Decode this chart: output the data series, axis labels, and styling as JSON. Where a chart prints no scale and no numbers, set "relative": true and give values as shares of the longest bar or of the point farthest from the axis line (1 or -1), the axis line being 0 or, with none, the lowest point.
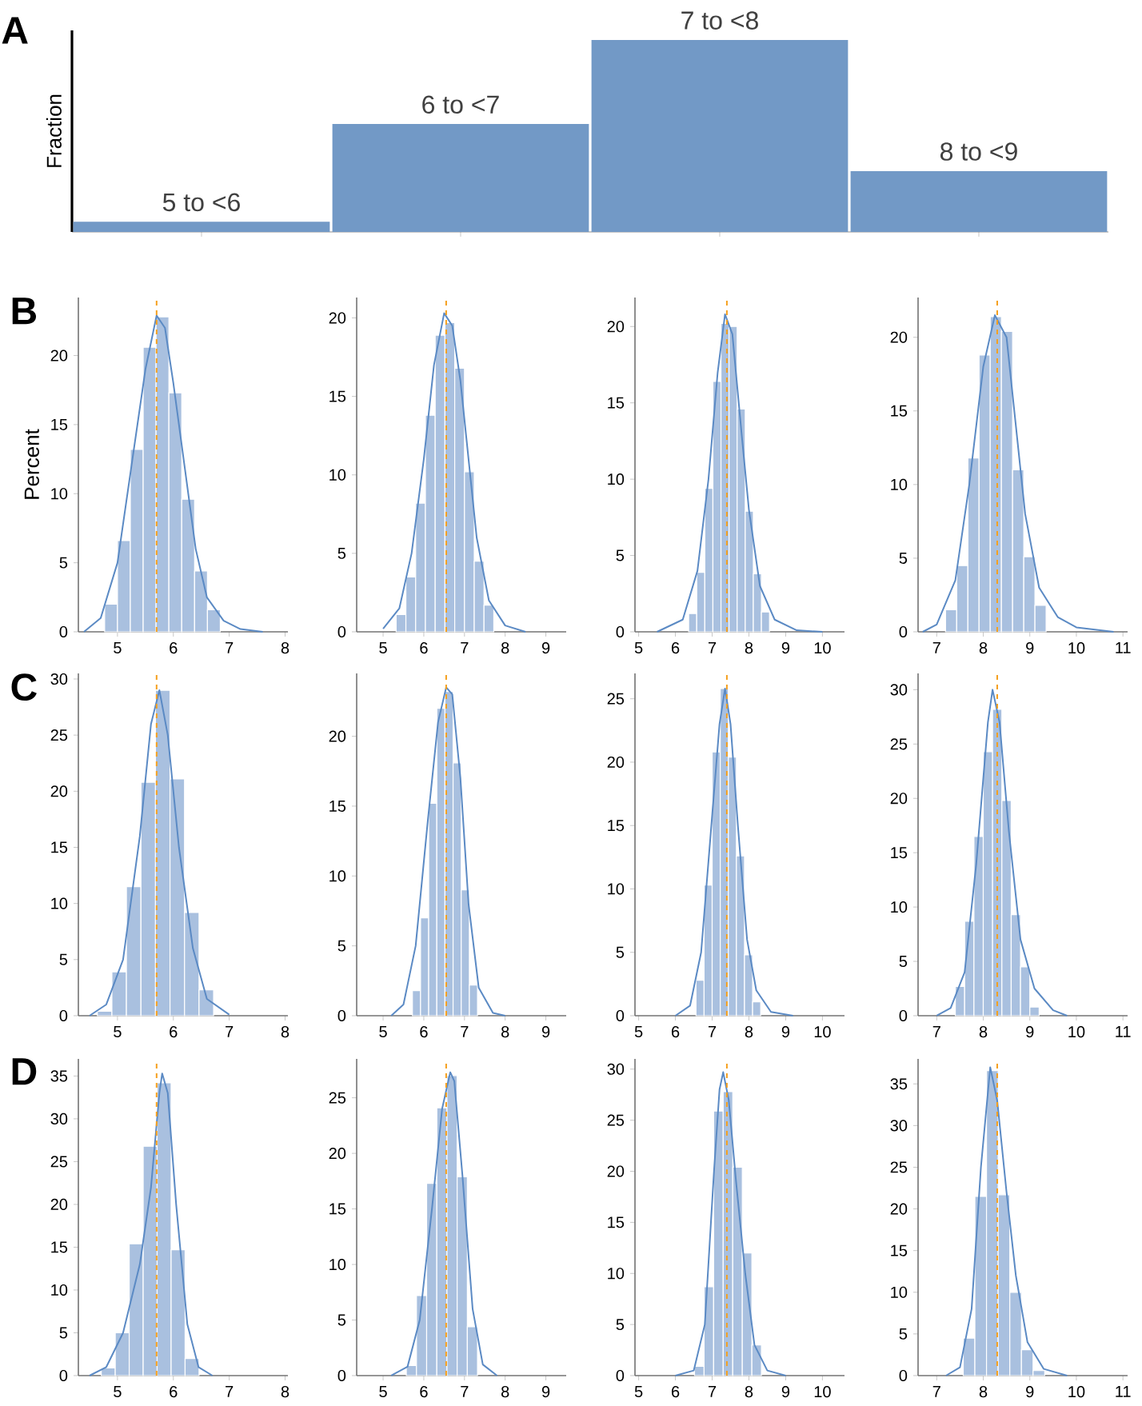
{
  "chart_data": [
    {
      "type": "bar",
      "relative": true,
      "categories": [
        "5 to <6",
        "6 to <7",
        "7 to <8",
        "8 to <9"
      ],
      "values": [
        0.053,
        0.562,
        1,
        0.317
      ],
      "color": "#7299c6",
      "ylabel": "Fraction",
      "annotations": [
        "A"
      ]
    },
    {
      "type": "histogram",
      "ylabel": "Percent",
      "annotations": [
        "B"
      ],
      "xlim": [
        4.3,
        8.05
      ],
      "xticks": [
        5,
        6,
        7,
        8
      ],
      "ylim": [
        0,
        24.2
      ],
      "yticks": [
        0,
        5,
        10,
        15,
        20
      ],
      "series": [
        {
          "type": "histogram",
          "color": "#a9c0df",
          "bins": [
            4.77,
            5.0,
            5.23,
            5.46,
            5.69,
            5.92,
            6.15,
            6.38,
            6.61,
            6.84
          ],
          "values": [
            2.0,
            6.6,
            13.2,
            20.6,
            22.8,
            17.3,
            9.6,
            4.4,
            1.6
          ]
        },
        {
          "type": "line",
          "color": "#5b8ac4",
          "x": [
            4.4,
            4.7,
            5.0,
            5.25,
            5.5,
            5.7,
            5.85,
            6.0,
            6.2,
            6.4,
            6.6,
            6.9,
            7.2,
            7.6
          ],
          "values": [
            0,
            1,
            5,
            12,
            19,
            22.9,
            22,
            18,
            12,
            6,
            2.5,
            0.8,
            0.2,
            0
          ]
        }
      ],
      "ref_lines": [
        {
          "axis": "x",
          "value": 5.7,
          "color": "#f5a01e",
          "line_style": "dashed"
        }
      ]
    },
    {
      "type": "histogram",
      "xlim": [
        4.35,
        9.5
      ],
      "xticks": [
        5,
        6,
        7,
        8,
        9
      ],
      "ylim": [
        0,
        21.3
      ],
      "yticks": [
        0,
        5,
        10,
        15,
        20
      ],
      "series": [
        {
          "type": "histogram",
          "color": "#a9c0df",
          "bins": [
            5.32,
            5.56,
            5.8,
            6.04,
            6.28,
            6.52,
            6.76,
            7.0,
            7.24,
            7.48,
            7.72
          ],
          "values": [
            1.1,
            3.5,
            8.2,
            13.8,
            18.9,
            19.7,
            16.8,
            10.2,
            4.5,
            1.7
          ]
        },
        {
          "type": "line",
          "color": "#5b8ac4",
          "x": [
            5.0,
            5.4,
            5.7,
            6.0,
            6.25,
            6.5,
            6.7,
            6.9,
            7.1,
            7.3,
            7.6,
            8.0,
            8.5
          ],
          "values": [
            0.2,
            1.5,
            5,
            11,
            17,
            20.3,
            19.5,
            16,
            11,
            6,
            2,
            0.4,
            0
          ]
        }
      ],
      "ref_lines": [
        {
          "axis": "x",
          "value": 6.55,
          "color": "#f5a01e",
          "line_style": "dashed"
        }
      ]
    },
    {
      "type": "histogram",
      "xlim": [
        4.9,
        10.6
      ],
      "xticks": [
        5,
        6,
        7,
        8,
        9,
        10
      ],
      "ylim": [
        0,
        21.9
      ],
      "yticks": [
        0,
        5,
        10,
        15,
        20
      ],
      "series": [
        {
          "type": "histogram",
          "color": "#a9c0df",
          "bins": [
            6.36,
            6.58,
            6.8,
            7.02,
            7.24,
            7.46,
            7.68,
            7.9,
            8.12,
            8.34,
            8.56
          ],
          "values": [
            1.2,
            3.9,
            9.4,
            16.4,
            20.2,
            20.0,
            14.6,
            7.9,
            3.8,
            1.3
          ]
        },
        {
          "type": "line",
          "color": "#5b8ac4",
          "x": [
            5.5,
            6.2,
            6.6,
            6.9,
            7.15,
            7.35,
            7.55,
            7.8,
            8.0,
            8.3,
            8.7,
            9.3,
            10.0
          ],
          "values": [
            0,
            0.8,
            4,
            10,
            17,
            20.8,
            19.5,
            13,
            8,
            3,
            0.8,
            0.1,
            0
          ]
        }
      ],
      "ref_lines": [
        {
          "axis": "x",
          "value": 7.4,
          "color": "#f5a01e",
          "line_style": "dashed"
        }
      ]
    },
    {
      "type": "histogram",
      "xlim": [
        6.6,
        11.1
      ],
      "xticks": [
        7,
        8,
        9,
        10,
        11
      ],
      "ylim": [
        0,
        22.7
      ],
      "yticks": [
        0,
        5,
        10,
        15,
        20
      ],
      "series": [
        {
          "type": "histogram",
          "color": "#a9c0df",
          "bins": [
            7.19,
            7.43,
            7.67,
            7.91,
            8.15,
            8.39,
            8.63,
            8.87,
            9.11,
            9.35
          ],
          "values": [
            1.5,
            4.5,
            11.8,
            18.8,
            21.4,
            20.4,
            11.0,
            5.1,
            1.8
          ]
        },
        {
          "type": "line",
          "color": "#5b8ac4",
          "x": [
            6.7,
            7.0,
            7.4,
            7.7,
            8.0,
            8.25,
            8.5,
            8.7,
            8.9,
            9.2,
            9.6,
            10.0,
            10.8
          ],
          "values": [
            0,
            0.5,
            3.5,
            10,
            18,
            21.5,
            20,
            14,
            8,
            3,
            1,
            0.3,
            0
          ]
        }
      ],
      "ref_lines": [
        {
          "axis": "x",
          "value": 8.3,
          "color": "#f5a01e",
          "line_style": "dashed"
        }
      ]
    },
    {
      "type": "histogram",
      "annotations": [
        "C"
      ],
      "xlim": [
        4.3,
        8.05
      ],
      "xticks": [
        5,
        6,
        7,
        8
      ],
      "ylim": [
        0,
        30.5
      ],
      "yticks": [
        0,
        5,
        10,
        15,
        20,
        25,
        30
      ],
      "series": [
        {
          "type": "histogram",
          "color": "#a9c0df",
          "bins": [
            4.64,
            4.9,
            5.16,
            5.42,
            5.68,
            5.94,
            6.2,
            6.46,
            6.72
          ],
          "values": [
            0.4,
            3.9,
            11.5,
            20.8,
            29.0,
            21.1,
            9.2,
            2.3
          ]
        },
        {
          "type": "line",
          "color": "#5b8ac4",
          "x": [
            4.5,
            4.8,
            5.1,
            5.4,
            5.6,
            5.75,
            5.9,
            6.1,
            6.35,
            6.6,
            7.0
          ],
          "values": [
            0,
            1,
            5,
            16,
            26,
            29,
            25,
            15,
            6,
            1.5,
            0.1
          ]
        }
      ],
      "ref_lines": [
        {
          "axis": "x",
          "value": 5.7,
          "color": "#f5a01e",
          "line_style": "dashed"
        }
      ]
    },
    {
      "type": "histogram",
      "xlim": [
        4.35,
        9.5
      ],
      "xticks": [
        5,
        6,
        7,
        8,
        9
      ],
      "ylim": [
        0,
        24.5
      ],
      "yticks": [
        0,
        5,
        10,
        15,
        20
      ],
      "series": [
        {
          "type": "histogram",
          "color": "#a9c0df",
          "bins": [
            5.72,
            5.92,
            6.12,
            6.32,
            6.52,
            6.72,
            6.92,
            7.12,
            7.32
          ],
          "values": [
            1.8,
            7.0,
            15.2,
            22.0,
            23.2,
            18.1,
            9.0,
            2.2
          ]
        },
        {
          "type": "line",
          "color": "#5b8ac4",
          "x": [
            5.2,
            5.5,
            5.8,
            6.1,
            6.35,
            6.55,
            6.7,
            6.9,
            7.1,
            7.35,
            7.7,
            8.0
          ],
          "values": [
            0,
            0.8,
            5,
            14,
            21,
            23.5,
            23,
            17,
            8,
            2,
            0.2,
            0
          ]
        }
      ],
      "ref_lines": [
        {
          "axis": "x",
          "value": 6.55,
          "color": "#f5a01e",
          "line_style": "dashed"
        }
      ]
    },
    {
      "type": "histogram",
      "xlim": [
        4.9,
        10.6
      ],
      "xticks": [
        5,
        6,
        7,
        8,
        9,
        10
      ],
      "ylim": [
        0,
        27
      ],
      "yticks": [
        0,
        5,
        10,
        15,
        20,
        25
      ],
      "series": [
        {
          "type": "histogram",
          "color": "#a9c0df",
          "bins": [
            6.56,
            6.78,
            7.0,
            7.22,
            7.44,
            7.66,
            7.88,
            8.1,
            8.32
          ],
          "values": [
            2.8,
            10.3,
            20.8,
            25.8,
            20.4,
            12.6,
            4.8,
            1.1
          ]
        },
        {
          "type": "line",
          "color": "#5b8ac4",
          "x": [
            6.0,
            6.4,
            6.7,
            6.95,
            7.2,
            7.35,
            7.5,
            7.7,
            7.95,
            8.2,
            8.6,
            9.2
          ],
          "values": [
            0,
            0.8,
            5,
            14,
            23,
            25.8,
            23,
            15,
            6,
            2,
            0.3,
            0
          ]
        }
      ],
      "ref_lines": [
        {
          "axis": "x",
          "value": 7.4,
          "color": "#f5a01e",
          "line_style": "dashed"
        }
      ]
    },
    {
      "type": "histogram",
      "xlim": [
        6.6,
        11.1
      ],
      "xticks": [
        7,
        8,
        9,
        10,
        11
      ],
      "ylim": [
        0,
        31.5
      ],
      "yticks": [
        0,
        5,
        10,
        15,
        20,
        25,
        30
      ],
      "series": [
        {
          "type": "histogram",
          "color": "#a9c0df",
          "bins": [
            7.4,
            7.6,
            7.8,
            8.0,
            8.2,
            8.4,
            8.6,
            8.8,
            9.0,
            9.2
          ],
          "values": [
            2.7,
            8.7,
            16.5,
            24.3,
            28.2,
            19.8,
            9.3,
            4.5,
            0.8
          ]
        },
        {
          "type": "line",
          "color": "#5b8ac4",
          "x": [
            7.0,
            7.3,
            7.6,
            7.85,
            8.1,
            8.2,
            8.35,
            8.55,
            8.8,
            9.1,
            9.5,
            9.8
          ],
          "values": [
            0,
            0.7,
            4,
            14,
            27,
            30,
            27,
            17,
            7,
            2.5,
            0.5,
            0
          ]
        }
      ],
      "ref_lines": [
        {
          "axis": "x",
          "value": 8.3,
          "color": "#f5a01e",
          "line_style": "dashed"
        }
      ]
    },
    {
      "type": "histogram",
      "annotations": [
        "D"
      ],
      "xlim": [
        4.3,
        8.05
      ],
      "xticks": [
        5,
        6,
        7,
        8
      ],
      "ylim": [
        0,
        37
      ],
      "yticks": [
        0,
        5,
        10,
        15,
        20,
        25,
        30,
        35
      ],
      "series": [
        {
          "type": "histogram",
          "color": "#a9c0df",
          "bins": [
            4.71,
            4.96,
            5.21,
            5.46,
            5.71,
            5.96,
            6.21,
            6.46
          ],
          "values": [
            0.9,
            5.0,
            15.4,
            26.8,
            34.2,
            14.7,
            2.0
          ]
        },
        {
          "type": "line",
          "color": "#5b8ac4",
          "x": [
            4.5,
            4.8,
            5.1,
            5.4,
            5.6,
            5.75,
            5.8,
            5.9,
            6.05,
            6.25,
            6.45,
            6.7
          ],
          "values": [
            0,
            1,
            5,
            13,
            22,
            33,
            35.3,
            33,
            20,
            6,
            1,
            0
          ]
        }
      ],
      "ref_lines": [
        {
          "axis": "x",
          "value": 5.7,
          "color": "#f5a01e",
          "line_style": "dashed"
        }
      ]
    },
    {
      "type": "histogram",
      "xlim": [
        4.35,
        9.5
      ],
      "xticks": [
        5,
        6,
        7,
        8,
        9
      ],
      "ylim": [
        0,
        28.5
      ],
      "yticks": [
        0,
        5,
        10,
        15,
        20,
        25
      ],
      "series": [
        {
          "type": "histogram",
          "color": "#a9c0df",
          "bins": [
            5.57,
            5.82,
            6.07,
            6.32,
            6.57,
            6.82,
            7.07,
            7.32
          ],
          "values": [
            0.9,
            7.2,
            17.3,
            24.1,
            27.0,
            17.9,
            4.4
          ]
        },
        {
          "type": "line",
          "color": "#5b8ac4",
          "x": [
            5.2,
            5.6,
            5.9,
            6.2,
            6.45,
            6.65,
            6.75,
            6.95,
            7.2,
            7.45,
            7.8
          ],
          "values": [
            0,
            0.8,
            5,
            15,
            24,
            27.3,
            26.5,
            18,
            6,
            1,
            0
          ]
        }
      ],
      "ref_lines": [
        {
          "axis": "x",
          "value": 6.55,
          "color": "#f5a01e",
          "line_style": "dashed"
        }
      ]
    },
    {
      "type": "histogram",
      "xlim": [
        4.9,
        10.6
      ],
      "xticks": [
        5,
        6,
        7,
        8,
        9,
        10
      ],
      "ylim": [
        0,
        31
      ],
      "yticks": [
        0,
        5,
        10,
        15,
        20,
        25,
        30
      ],
      "series": [
        {
          "type": "histogram",
          "color": "#a9c0df",
          "bins": [
            6.52,
            6.78,
            7.04,
            7.3,
            7.56,
            7.82,
            8.08,
            8.34
          ],
          "values": [
            0.9,
            8.7,
            25.9,
            27.8,
            20.4,
            12.0,
            3.0
          ]
        },
        {
          "type": "line",
          "color": "#5b8ac4",
          "x": [
            6.0,
            6.5,
            6.8,
            7.05,
            7.2,
            7.3,
            7.45,
            7.65,
            7.9,
            8.15,
            8.5,
            9.0
          ],
          "values": [
            0,
            0.5,
            5,
            20,
            28,
            29.7,
            27,
            19,
            10,
            3,
            0.5,
            0
          ]
        }
      ],
      "ref_lines": [
        {
          "axis": "x",
          "value": 7.4,
          "color": "#f5a01e",
          "line_style": "dashed"
        }
      ]
    },
    {
      "type": "histogram",
      "xlim": [
        6.6,
        11.1
      ],
      "xticks": [
        7,
        8,
        9,
        10,
        11
      ],
      "ylim": [
        0,
        38
      ],
      "yticks": [
        0,
        5,
        10,
        15,
        20,
        25,
        30,
        35
      ],
      "series": [
        {
          "type": "histogram",
          "color": "#a9c0df",
          "bins": [
            7.57,
            7.82,
            8.07,
            8.32,
            8.57,
            8.82,
            9.07,
            9.32
          ],
          "values": [
            4.5,
            21.5,
            36.6,
            21.7,
            10.0,
            3.1,
            0.6
          ]
        },
        {
          "type": "line",
          "color": "#5b8ac4",
          "x": [
            7.2,
            7.5,
            7.75,
            7.95,
            8.15,
            8.3,
            8.5,
            8.7,
            8.95,
            9.3,
            9.8
          ],
          "values": [
            0,
            1,
            8,
            25,
            37,
            33,
            22,
            12,
            4,
            0.8,
            0
          ]
        }
      ],
      "ref_lines": [
        {
          "axis": "x",
          "value": 8.3,
          "color": "#f5a01e",
          "line_style": "dashed"
        }
      ]
    }
  ]
}
